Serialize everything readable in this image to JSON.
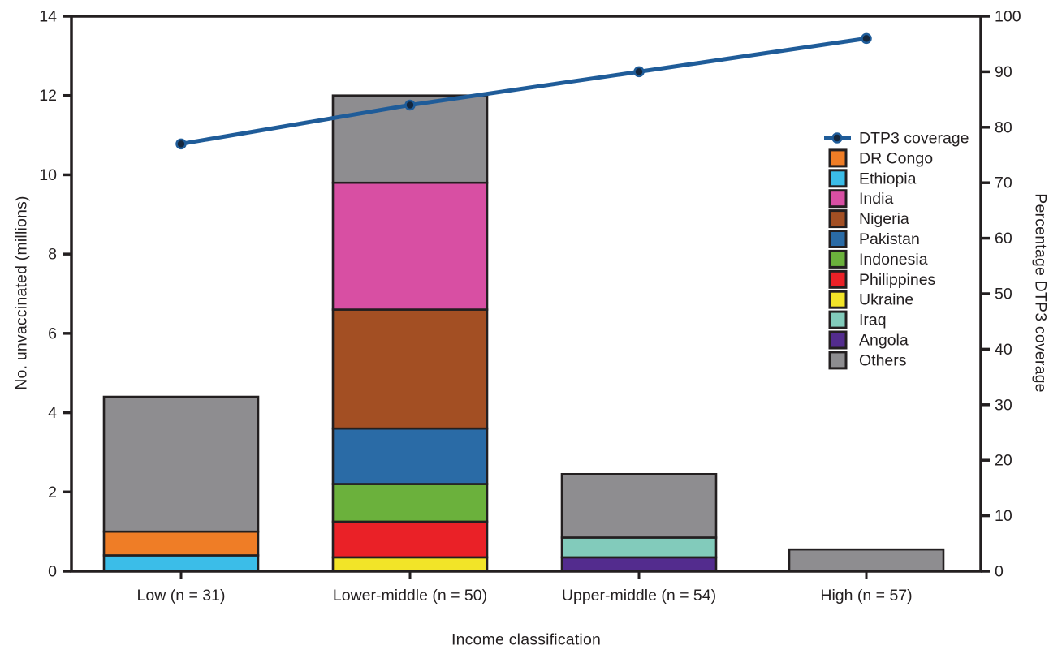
{
  "chart_data": {
    "type": "bar",
    "subtype": "stacked-bar-with-line-overlay",
    "title": "",
    "categories": [
      "Low (n = 31)",
      "Lower-middle (n = 50)",
      "Upper-middle (n = 54)",
      "High (n = 57)"
    ],
    "x_axis": {
      "label": "Income classification"
    },
    "left_axis": {
      "label": "No. unvaccinated (millions)",
      "min": 0,
      "max": 14,
      "tick_step": 2,
      "ticks": [
        0,
        2,
        4,
        6,
        8,
        10,
        12,
        14
      ]
    },
    "right_axis": {
      "label": "Percentage DTP3 coverage",
      "min": 0,
      "max": 100,
      "tick_step": 10,
      "ticks": [
        0,
        10,
        20,
        30,
        40,
        50,
        60,
        70,
        80,
        90,
        100
      ]
    },
    "colors": {
      "DR Congo": "#EF7D26",
      "Ethiopia": "#3BBDE8",
      "India": "#D84FA3",
      "Nigeria": "#A34F23",
      "Pakistan": "#2A6BA6",
      "Indonesia": "#6BB13C",
      "Philippines": "#EA2127",
      "Ukraine": "#F2E428",
      "Iraq": "#82CBBB",
      "Angola": "#532C8E",
      "Others": "#8E8D90"
    },
    "ink_color": "#231F20",
    "stacks": [
      {
        "category": "Low (n = 31)",
        "total": 4.4,
        "segments": [
          {
            "country": "Ethiopia",
            "value": 0.4
          },
          {
            "country": "DR Congo",
            "value": 0.6
          },
          {
            "country": "Others",
            "value": 3.4
          }
        ]
      },
      {
        "category": "Lower-middle (n = 50)",
        "total": 12.0,
        "segments": [
          {
            "country": "Ukraine",
            "value": 0.35
          },
          {
            "country": "Philippines",
            "value": 0.9
          },
          {
            "country": "Indonesia",
            "value": 0.95
          },
          {
            "country": "Pakistan",
            "value": 1.4
          },
          {
            "country": "Nigeria",
            "value": 3.0
          },
          {
            "country": "India",
            "value": 3.2
          },
          {
            "country": "Others",
            "value": 2.2
          }
        ]
      },
      {
        "category": "Upper-middle (n = 54)",
        "total": 2.45,
        "segments": [
          {
            "country": "Angola",
            "value": 0.35
          },
          {
            "country": "Iraq",
            "value": 0.5
          },
          {
            "country": "Others",
            "value": 1.6
          }
        ]
      },
      {
        "category": "High (n = 57)",
        "total": 0.55,
        "segments": [
          {
            "country": "Others",
            "value": 0.55
          }
        ]
      }
    ],
    "line_series": {
      "name": "DTP3 coverage",
      "color": "#1F5C99",
      "marker_color": "#15273D",
      "values": [
        77,
        84,
        90,
        96
      ]
    },
    "legend": {
      "position": "inside-right",
      "items": [
        {
          "label": "DTP3 coverage",
          "type": "line"
        },
        {
          "label": "DR Congo",
          "type": "swatch"
        },
        {
          "label": "Ethiopia",
          "type": "swatch"
        },
        {
          "label": "India",
          "type": "swatch"
        },
        {
          "label": "Nigeria",
          "type": "swatch"
        },
        {
          "label": "Pakistan",
          "type": "swatch"
        },
        {
          "label": "Indonesia",
          "type": "swatch"
        },
        {
          "label": "Philippines",
          "type": "swatch"
        },
        {
          "label": "Ukraine",
          "type": "swatch"
        },
        {
          "label": "Iraq",
          "type": "swatch"
        },
        {
          "label": "Angola",
          "type": "swatch"
        },
        {
          "label": "Others",
          "type": "swatch"
        }
      ]
    },
    "grid": false
  }
}
